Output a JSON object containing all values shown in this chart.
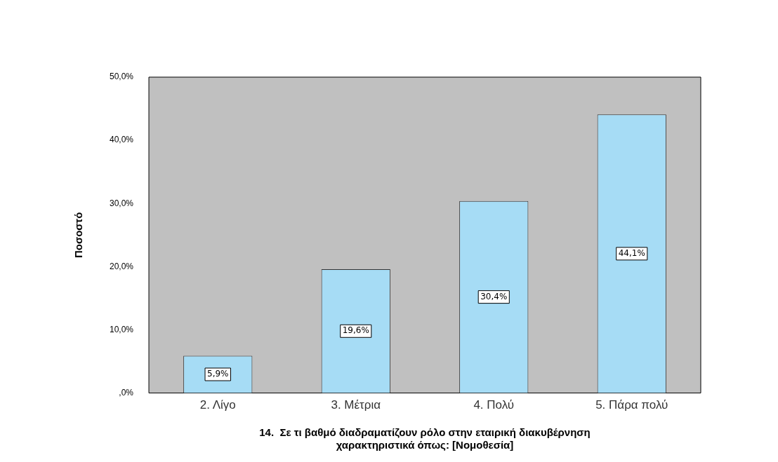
{
  "chart_data": {
    "type": "bar",
    "xlabel": "14.  Σε τι βαθμό διαδραματίζουν ρόλο στην εταιρική διακυβέρνηση\nχαρακτηριστικά όπως: [Νομοθεσία]",
    "ylabel": "Ποσοστό",
    "categories": [
      "2. Λίγο",
      "3. Μέτρια",
      "4. Πολύ",
      "5. Πάρα πολύ"
    ],
    "values": [
      5.9,
      19.6,
      30.4,
      44.1
    ],
    "color": "#a6dcf5",
    "value_labels": [
      "5,9%",
      "19,6%",
      "30,4%",
      "44,1%"
    ],
    "ylim": [
      0,
      50
    ],
    "yticks": [
      {
        "value": 0,
        "label": ",0%"
      },
      {
        "value": 10,
        "label": "10,0%"
      },
      {
        "value": 20,
        "label": "20,0%"
      },
      {
        "value": 30,
        "label": "30,0%"
      },
      {
        "value": 40,
        "label": "40,0%"
      },
      {
        "value": 50,
        "label": "50,0%"
      }
    ],
    "grid": false,
    "legend": false
  }
}
